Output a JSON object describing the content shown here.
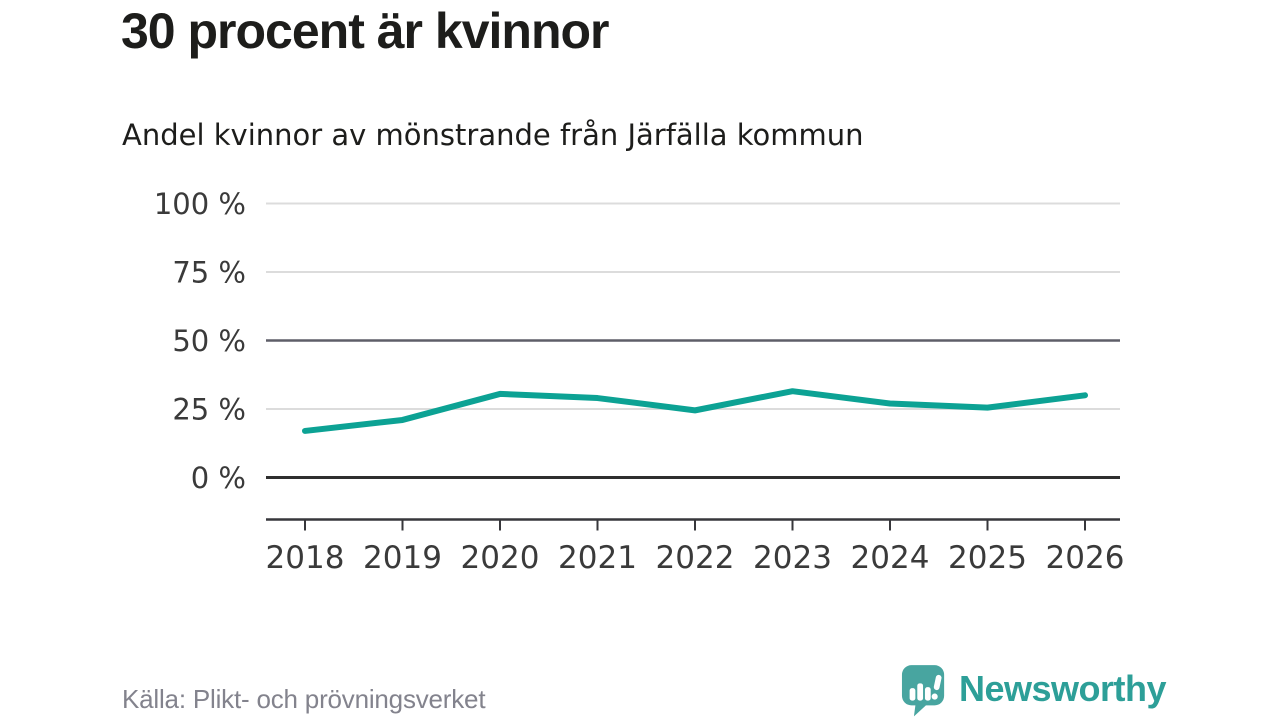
{
  "header": {
    "title": "30 procent är kvinnor",
    "subtitle": "Andel kvinnor av mönstrande från Järfälla kommun"
  },
  "chart_data": {
    "type": "line",
    "title": "30 procent är kvinnor",
    "subtitle": "Andel kvinnor av mönstrande från Järfälla kommun",
    "x": [
      "2018",
      "2019",
      "2020",
      "2021",
      "2022",
      "2023",
      "2024",
      "2025",
      "2026"
    ],
    "series": [
      {
        "name": "Andel kvinnor av mönstrande",
        "values": [
          17,
          21,
          30.5,
          29,
          24.5,
          31.5,
          27,
          25.5,
          30
        ],
        "color": "#0ca294"
      }
    ],
    "unit": "%",
    "ylim": [
      0,
      100
    ],
    "yticks": [
      0,
      25,
      50,
      75,
      100
    ],
    "ytick_labels": [
      "0 %",
      "25 %",
      "50 %",
      "75 %",
      "100 %"
    ],
    "emphasized_gridlines": [
      50
    ],
    "zero_gridline": 0,
    "grid": "horizontal",
    "legend": "none"
  },
  "footer": {
    "source": "Källa: Plikt- och prövningsverket",
    "brand": "Newsworthy"
  },
  "colors": {
    "line": "#0ca294",
    "grid_light": "#dcdcdc",
    "grid_mid": "#5e5e68",
    "grid_zero": "#2e2e2e",
    "axis": "#37373b",
    "tick_label": "#3a3a3a",
    "heading_text": "#1d1d1b",
    "source_text": "#83838d",
    "brand_teal": "#2d9f98",
    "logo_bubble": "#48a5a0"
  },
  "icons": {
    "logo_mark": "newsworthy-speech-bubble-barchart-icon"
  }
}
